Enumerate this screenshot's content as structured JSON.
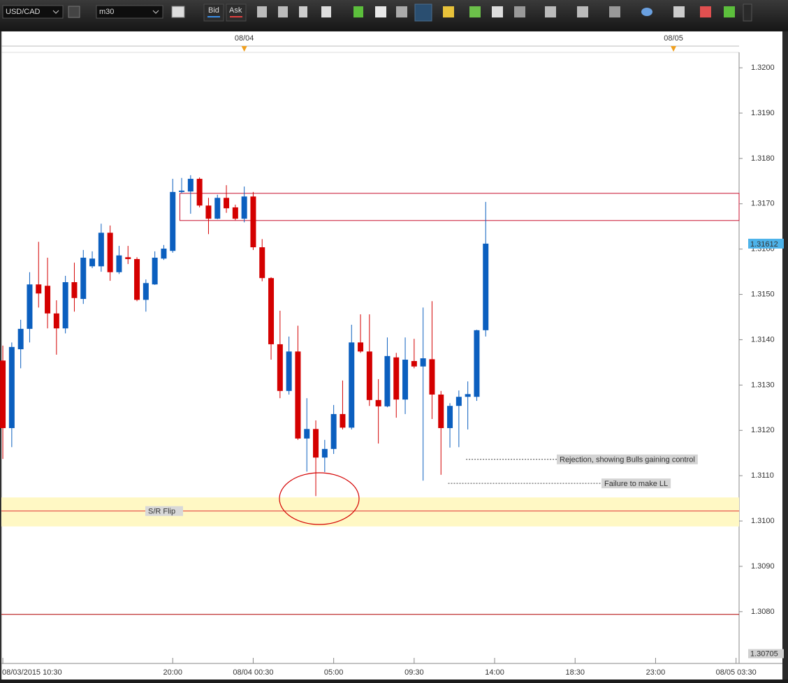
{
  "toolbar": {
    "symbol": "USD/CAD",
    "timeframe": "m30",
    "bid": "Bid",
    "ask": "Ask"
  },
  "chart_data": {
    "type": "candlestick",
    "up_color": "#0b5fbf",
    "down_color": "#d40000",
    "open": [
      1.31354,
      1.31205,
      1.31379,
      1.31424,
      1.31522,
      1.31519,
      1.31458,
      1.31425,
      1.31527,
      1.3149,
      1.31562,
      1.31562,
      1.31636,
      1.31549,
      1.31582,
      1.31578,
      1.31488,
      1.31522,
      1.31579,
      1.31596,
      1.31726,
      1.31727,
      1.31755,
      1.31696,
      1.31667,
      1.31713,
      1.31692,
      1.31667,
      1.31716,
      1.31604,
      1.31536,
      1.3139,
      1.31287,
      1.31374,
      1.31182,
      1.31203,
      1.3114,
      1.31159,
      1.31236,
      1.31206,
      1.31394,
      1.31374,
      1.31267,
      1.31253,
      1.31361,
      1.31268,
      1.31353,
      1.31341,
      1.31357,
      1.31279,
      1.31205,
      1.31254,
      1.31274,
      1.31274,
      1.31421
    ],
    "high": [
      1.31387,
      1.31394,
      1.31444,
      1.31549,
      1.31616,
      1.31581,
      1.31487,
      1.31541,
      1.3157,
      1.31598,
      1.31595,
      1.31656,
      1.31652,
      1.31607,
      1.31607,
      1.31582,
      1.31533,
      1.31595,
      1.31609,
      1.31755,
      1.31757,
      1.31763,
      1.31758,
      1.31713,
      1.3172,
      1.31741,
      1.31698,
      1.31738,
      1.31726,
      1.31622,
      1.31538,
      1.31464,
      1.31407,
      1.31431,
      1.31271,
      1.31222,
      1.31179,
      1.31256,
      1.3131,
      1.31433,
      1.31456,
      1.31456,
      1.31313,
      1.31405,
      1.31371,
      1.31405,
      1.31402,
      1.31471,
      1.31485,
      1.31287,
      1.3126,
      1.31288,
      1.31308,
      1.31422,
      1.31704
    ],
    "low": [
      1.31137,
      1.31163,
      1.31337,
      1.31394,
      1.31471,
      1.31425,
      1.31367,
      1.31414,
      1.31462,
      1.31479,
      1.31558,
      1.3155,
      1.3153,
      1.31545,
      1.31567,
      1.31485,
      1.31462,
      1.31521,
      1.31576,
      1.31592,
      1.31723,
      1.31678,
      1.31692,
      1.31633,
      1.31666,
      1.3168,
      1.31664,
      1.31659,
      1.31598,
      1.31529,
      1.31356,
      1.31271,
      1.31279,
      1.31179,
      1.31109,
      1.31055,
      1.31108,
      1.31148,
      1.31202,
      1.31202,
      1.31371,
      1.31254,
      1.31171,
      1.31251,
      1.31228,
      1.31236,
      1.31337,
      1.31089,
      1.31225,
      1.31102,
      1.31162,
      1.31163,
      1.31202,
      1.31265,
      1.31407
    ],
    "close": [
      1.31205,
      1.31384,
      1.31424,
      1.31522,
      1.31502,
      1.31458,
      1.31425,
      1.31527,
      1.31492,
      1.31581,
      1.31579,
      1.31636,
      1.31549,
      1.31586,
      1.31578,
      1.31488,
      1.31525,
      1.31581,
      1.31601,
      1.31726,
      1.31729,
      1.31755,
      1.31696,
      1.31667,
      1.31713,
      1.3169,
      1.31667,
      1.31716,
      1.31604,
      1.31536,
      1.3139,
      1.31287,
      1.31374,
      1.31182,
      1.31203,
      1.3114,
      1.31159,
      1.31236,
      1.31206,
      1.31394,
      1.31374,
      1.31267,
      1.31253,
      1.31364,
      1.31268,
      1.31356,
      1.31341,
      1.31359,
      1.31279,
      1.31205,
      1.31254,
      1.31274,
      1.3128,
      1.31421,
      1.31612
    ],
    "xlim": [
      -0.16,
      82.34
    ],
    "ylim": [
      1.30705,
      1.32034
    ],
    "yticks": [
      {
        "value": 1.308,
        "label": "1.3080"
      },
      {
        "value": 1.309,
        "label": "1.3090"
      },
      {
        "value": 1.31,
        "label": "1.3100"
      },
      {
        "value": 1.311,
        "label": "1.3110"
      },
      {
        "value": 1.312,
        "label": "1.3120"
      },
      {
        "value": 1.313,
        "label": "1.3130"
      },
      {
        "value": 1.314,
        "label": "1.3140"
      },
      {
        "value": 1.315,
        "label": "1.3150"
      },
      {
        "value": 1.316,
        "label": "1.3160"
      },
      {
        "value": 1.317,
        "label": "1.3170"
      },
      {
        "value": 1.318,
        "label": "1.3180"
      },
      {
        "value": 1.319,
        "label": "1.3190"
      },
      {
        "value": 1.32,
        "label": "1.3200"
      }
    ],
    "xticks": [
      {
        "value": 0,
        "label": "08/03/2015 10:30"
      },
      {
        "value": 19,
        "label": "20:00"
      },
      {
        "value": 28,
        "label": "08/04 00:30"
      },
      {
        "value": 37,
        "label": "05:00"
      },
      {
        "value": 46,
        "label": "09:30"
      },
      {
        "value": 55,
        "label": "14:00"
      },
      {
        "value": 64,
        "label": "18:30"
      },
      {
        "value": 73,
        "label": "23:00"
      },
      {
        "value": 82,
        "label": "08/05 03:30"
      }
    ],
    "date_markers": [
      {
        "value": 27,
        "label": "08/04"
      },
      {
        "value": 75,
        "label": "08/05"
      }
    ],
    "last_price": 1.31612,
    "resistance_box": {
      "top": 1.31723,
      "bottom": 1.31663,
      "start": 19.8,
      "color": "#c8102e"
    },
    "sr_zone": {
      "top": 1.31052,
      "bottom": 1.30988,
      "line": 1.31022,
      "label": "S/R Flip",
      "fill": "#fff8c4",
      "line_color": "#e03030"
    },
    "hline": {
      "value": 1.30794,
      "color": "#b00000"
    },
    "annotations": [
      {
        "text": "Rejection, showing Bulls gaining control",
        "price": 1.31136,
        "start": 51.8
      },
      {
        "text": "Failure to make LL",
        "price": 1.31083,
        "start": 49.8
      }
    ]
  }
}
